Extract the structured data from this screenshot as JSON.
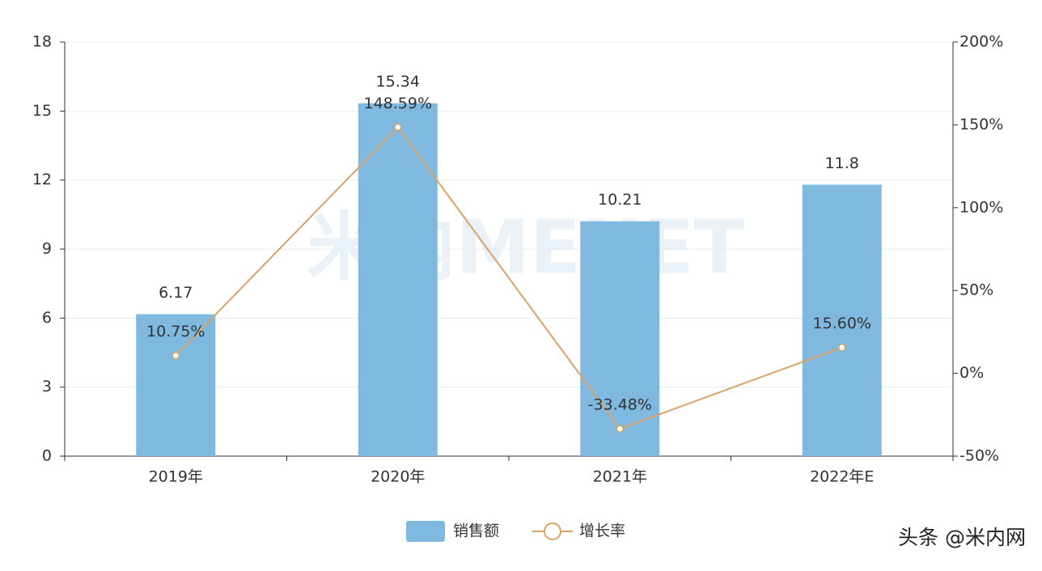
{
  "chart_data": {
    "type": "bar",
    "categories": [
      "2019年",
      "2020年",
      "2021年",
      "2022年E"
    ],
    "series": [
      {
        "name": "销售额",
        "type": "bar",
        "color": "#80b9e0",
        "values": [
          6.17,
          15.34,
          10.21,
          11.8
        ]
      },
      {
        "name": "增长率",
        "type": "line",
        "axis": "y2",
        "color": "#d9a266",
        "values": [
          10.75,
          148.59,
          -33.48,
          15.6
        ],
        "value_labels": [
          "10.75%",
          "148.59%",
          "-33.48%",
          "15.60%"
        ]
      }
    ],
    "ylim": [
      0,
      18
    ],
    "yticks": [
      0,
      3,
      6,
      9,
      12,
      15,
      18
    ],
    "y2lim": [
      -50,
      200
    ],
    "y2ticks": [
      {
        "value": -50,
        "label": "-50%"
      },
      {
        "value": 0,
        "label": "0%"
      },
      {
        "value": 50,
        "label": "50%"
      },
      {
        "value": 100,
        "label": "100%"
      },
      {
        "value": 150,
        "label": "150%"
      },
      {
        "value": 200,
        "label": "200%"
      }
    ],
    "grid": true,
    "legend": "bottom",
    "watermark": "米内MENET",
    "source": "头条 @米内网"
  }
}
